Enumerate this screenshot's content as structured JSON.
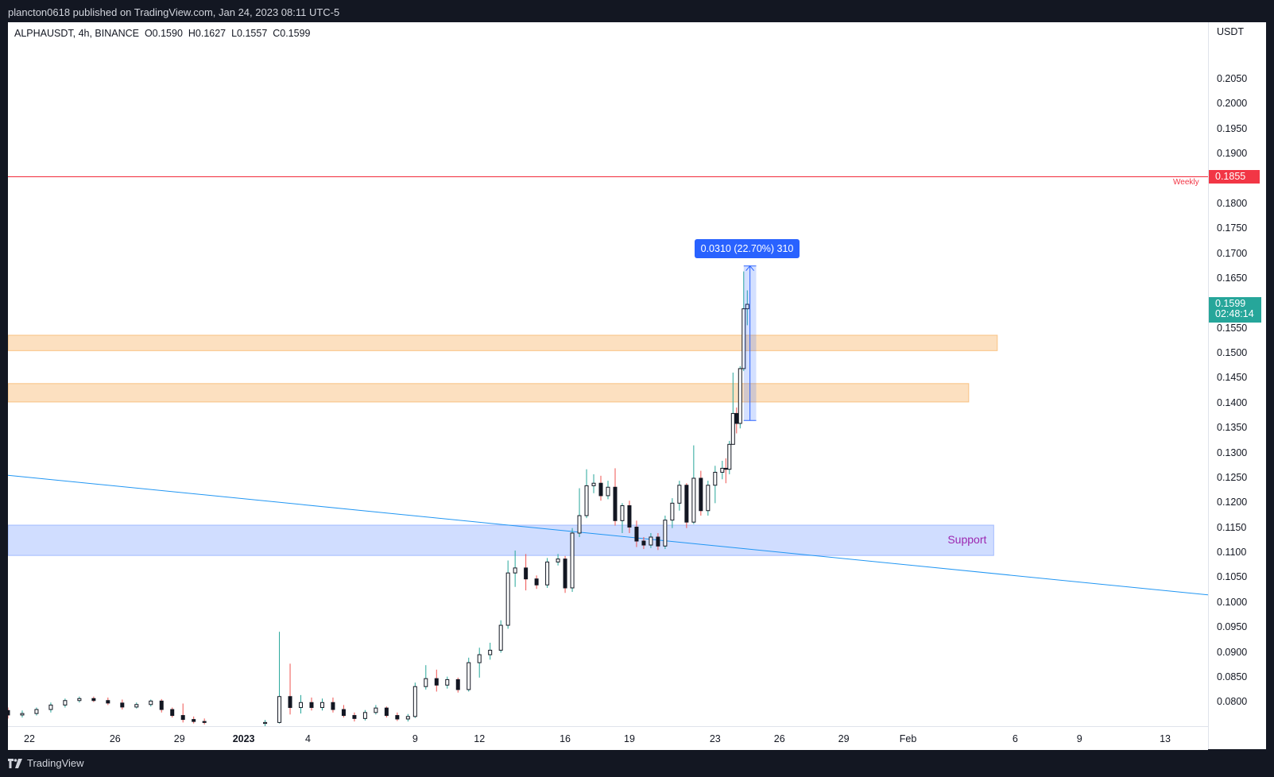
{
  "publisher_line": "plancton0618 published on TradingView.com, Jan 24, 2023 08:11 UTC-5",
  "legend": {
    "symbol": "ALPHAUSDT, 4h, BINANCE",
    "open": "O0.1590",
    "high": "H0.1627",
    "low": "L0.1557",
    "close": "C0.1599"
  },
  "y_axis": {
    "unit": "USDT",
    "ticks": [
      "0.2050",
      "0.2000",
      "0.1950",
      "0.1900",
      "0.1800",
      "0.1750",
      "0.1700",
      "0.1650",
      "0.1550",
      "0.1500",
      "0.1450",
      "0.1400",
      "0.1350",
      "0.1300",
      "0.1250",
      "0.1200",
      "0.1150",
      "0.1100",
      "0.1050",
      "0.1000",
      "0.0950",
      "0.0900",
      "0.0850",
      "0.0800"
    ]
  },
  "x_axis": {
    "ticks": [
      {
        "label": "22",
        "bold": false
      },
      {
        "label": "26",
        "bold": false
      },
      {
        "label": "29",
        "bold": false
      },
      {
        "label": "2023",
        "bold": true
      },
      {
        "label": "4",
        "bold": false
      },
      {
        "label": "9",
        "bold": false
      },
      {
        "label": "12",
        "bold": false
      },
      {
        "label": "16",
        "bold": false
      },
      {
        "label": "19",
        "bold": false
      },
      {
        "label": "23",
        "bold": false
      },
      {
        "label": "26",
        "bold": false
      },
      {
        "label": "29",
        "bold": false
      },
      {
        "label": "Feb",
        "bold": false
      },
      {
        "label": "6",
        "bold": false
      },
      {
        "label": "9",
        "bold": false
      },
      {
        "label": "13",
        "bold": false
      }
    ]
  },
  "weekly_level": {
    "label": "Weekly",
    "price": "0.1855",
    "color": "#f23645"
  },
  "last_price": {
    "price": "0.1599",
    "countdown": "02:48:14",
    "color": "#26a69a"
  },
  "measure": {
    "label": "0.0310 (22.70%) 310",
    "color": "#2962ff"
  },
  "support_label": "Support",
  "footer_brand": "TradingView",
  "colors": {
    "up": "#26a69a",
    "down": "#ef5350",
    "body_dark": "#131722",
    "zone_orange": "#f7a64b",
    "zone_blue": "#2962ff",
    "trendline": "#2196f3"
  },
  "chart_data": {
    "type": "candlestick",
    "symbol": "ALPHAUSDT",
    "interval": "4h",
    "exchange": "BINANCE",
    "y_scale": "linear",
    "ylim": [
      0.0755,
      0.215
    ],
    "x_range": [
      "2022-12-21",
      "2023-02-15"
    ],
    "trendline": {
      "from": {
        "x": "2022-12-21",
        "y": 0.1256
      },
      "to": {
        "x": "2023-02-15",
        "y": 0.1016
      }
    },
    "zones": [
      {
        "name": "resistance-upper",
        "y": [
          0.1506,
          0.1537
        ]
      },
      {
        "name": "resistance-lower",
        "y": [
          0.1403,
          0.144
        ]
      },
      {
        "name": "support",
        "y": [
          0.1095,
          0.1156
        ]
      }
    ],
    "horizontal_lines": [
      {
        "name": "weekly",
        "y": 0.1855
      }
    ],
    "measure": {
      "x": [
        "2023-01-24",
        "2023-01-25"
      ],
      "y": [
        0.1366,
        0.1676
      ]
    },
    "ohlc": [
      {
        "t": "2022-12-21T00:00",
        "o": 0.0784,
        "h": 0.079,
        "l": 0.0768,
        "c": 0.0775
      },
      {
        "t": "2022-12-21T16:00",
        "o": 0.0775,
        "h": 0.0784,
        "l": 0.077,
        "c": 0.0778
      },
      {
        "t": "2022-12-22T08:00",
        "o": 0.0778,
        "h": 0.079,
        "l": 0.0774,
        "c": 0.0786
      },
      {
        "t": "2022-12-23T00:00",
        "o": 0.0786,
        "h": 0.08,
        "l": 0.078,
        "c": 0.0795
      },
      {
        "t": "2022-12-23T16:00",
        "o": 0.0795,
        "h": 0.0808,
        "l": 0.079,
        "c": 0.0804
      },
      {
        "t": "2022-12-24T08:00",
        "o": 0.0804,
        "h": 0.0812,
        "l": 0.08,
        "c": 0.0808
      },
      {
        "t": "2022-12-25T00:00",
        "o": 0.0808,
        "h": 0.0812,
        "l": 0.0801,
        "c": 0.0804
      },
      {
        "t": "2022-12-25T16:00",
        "o": 0.0804,
        "h": 0.081,
        "l": 0.0795,
        "c": 0.0799
      },
      {
        "t": "2022-12-26T08:00",
        "o": 0.0799,
        "h": 0.0806,
        "l": 0.0786,
        "c": 0.0791
      },
      {
        "t": "2022-12-27T00:00",
        "o": 0.0791,
        "h": 0.08,
        "l": 0.0788,
        "c": 0.0796
      },
      {
        "t": "2022-12-27T16:00",
        "o": 0.0796,
        "h": 0.0806,
        "l": 0.0792,
        "c": 0.0803
      },
      {
        "t": "2022-12-28T04:00",
        "o": 0.0803,
        "h": 0.0807,
        "l": 0.078,
        "c": 0.0786
      },
      {
        "t": "2022-12-28T16:00",
        "o": 0.0786,
        "h": 0.079,
        "l": 0.077,
        "c": 0.0774
      },
      {
        "t": "2022-12-29T04:00",
        "o": 0.0774,
        "h": 0.0798,
        "l": 0.076,
        "c": 0.0766
      },
      {
        "t": "2022-12-29T16:00",
        "o": 0.0766,
        "h": 0.0772,
        "l": 0.0758,
        "c": 0.0762
      },
      {
        "t": "2022-12-30T04:00",
        "o": 0.0762,
        "h": 0.0768,
        "l": 0.0756,
        "c": 0.076
      },
      {
        "t": "2023-01-02T00:00",
        "o": 0.0758,
        "h": 0.0765,
        "l": 0.0752,
        "c": 0.076
      },
      {
        "t": "2023-01-02T16:00",
        "o": 0.076,
        "h": 0.0942,
        "l": 0.0758,
        "c": 0.0812
      },
      {
        "t": "2023-01-03T04:00",
        "o": 0.0812,
        "h": 0.0878,
        "l": 0.0776,
        "c": 0.079
      },
      {
        "t": "2023-01-03T16:00",
        "o": 0.079,
        "h": 0.0815,
        "l": 0.0778,
        "c": 0.08
      },
      {
        "t": "2023-01-04T04:00",
        "o": 0.08,
        "h": 0.081,
        "l": 0.0784,
        "c": 0.079
      },
      {
        "t": "2023-01-04T16:00",
        "o": 0.079,
        "h": 0.0808,
        "l": 0.0784,
        "c": 0.08
      },
      {
        "t": "2023-01-05T04:00",
        "o": 0.08,
        "h": 0.081,
        "l": 0.078,
        "c": 0.0786
      },
      {
        "t": "2023-01-05T16:00",
        "o": 0.0786,
        "h": 0.0795,
        "l": 0.077,
        "c": 0.0774
      },
      {
        "t": "2023-01-06T04:00",
        "o": 0.0774,
        "h": 0.078,
        "l": 0.0762,
        "c": 0.0768
      },
      {
        "t": "2023-01-06T16:00",
        "o": 0.0768,
        "h": 0.0785,
        "l": 0.0764,
        "c": 0.078
      },
      {
        "t": "2023-01-07T04:00",
        "o": 0.078,
        "h": 0.0795,
        "l": 0.0776,
        "c": 0.0789
      },
      {
        "t": "2023-01-07T16:00",
        "o": 0.0789,
        "h": 0.0792,
        "l": 0.077,
        "c": 0.0774
      },
      {
        "t": "2023-01-08T04:00",
        "o": 0.0774,
        "h": 0.078,
        "l": 0.0763,
        "c": 0.0767
      },
      {
        "t": "2023-01-08T16:00",
        "o": 0.0767,
        "h": 0.0777,
        "l": 0.0762,
        "c": 0.0772
      },
      {
        "t": "2023-01-09T00:00",
        "o": 0.0772,
        "h": 0.084,
        "l": 0.0769,
        "c": 0.0832
      },
      {
        "t": "2023-01-09T12:00",
        "o": 0.0832,
        "h": 0.0875,
        "l": 0.0826,
        "c": 0.0848
      },
      {
        "t": "2023-01-10T00:00",
        "o": 0.0848,
        "h": 0.0866,
        "l": 0.0822,
        "c": 0.0835
      },
      {
        "t": "2023-01-10T12:00",
        "o": 0.0835,
        "h": 0.0852,
        "l": 0.0828,
        "c": 0.0846
      },
      {
        "t": "2023-01-11T00:00",
        "o": 0.0846,
        "h": 0.085,
        "l": 0.082,
        "c": 0.0826
      },
      {
        "t": "2023-01-11T12:00",
        "o": 0.0826,
        "h": 0.089,
        "l": 0.0822,
        "c": 0.088
      },
      {
        "t": "2023-01-12T00:00",
        "o": 0.088,
        "h": 0.091,
        "l": 0.085,
        "c": 0.0896
      },
      {
        "t": "2023-01-12T12:00",
        "o": 0.0896,
        "h": 0.092,
        "l": 0.0886,
        "c": 0.0905
      },
      {
        "t": "2023-01-13T00:00",
        "o": 0.0905,
        "h": 0.0965,
        "l": 0.09,
        "c": 0.0955
      },
      {
        "t": "2023-01-13T08:00",
        "o": 0.0955,
        "h": 0.1085,
        "l": 0.0948,
        "c": 0.106
      },
      {
        "t": "2023-01-13T16:00",
        "o": 0.106,
        "h": 0.1105,
        "l": 0.1032,
        "c": 0.107
      },
      {
        "t": "2023-01-14T04:00",
        "o": 0.107,
        "h": 0.1098,
        "l": 0.1025,
        "c": 0.1048
      },
      {
        "t": "2023-01-14T16:00",
        "o": 0.1048,
        "h": 0.1055,
        "l": 0.1028,
        "c": 0.1036
      },
      {
        "t": "2023-01-15T04:00",
        "o": 0.1036,
        "h": 0.109,
        "l": 0.103,
        "c": 0.1082
      },
      {
        "t": "2023-01-15T16:00",
        "o": 0.1082,
        "h": 0.1098,
        "l": 0.1075,
        "c": 0.1088
      },
      {
        "t": "2023-01-16T00:00",
        "o": 0.1088,
        "h": 0.1094,
        "l": 0.102,
        "c": 0.103
      },
      {
        "t": "2023-01-16T08:00",
        "o": 0.103,
        "h": 0.115,
        "l": 0.1022,
        "c": 0.114
      },
      {
        "t": "2023-01-16T16:00",
        "o": 0.114,
        "h": 0.123,
        "l": 0.1132,
        "c": 0.1175
      },
      {
        "t": "2023-01-17T00:00",
        "o": 0.1175,
        "h": 0.1268,
        "l": 0.117,
        "c": 0.1235
      },
      {
        "t": "2023-01-17T08:00",
        "o": 0.1235,
        "h": 0.1258,
        "l": 0.122,
        "c": 0.124
      },
      {
        "t": "2023-01-17T16:00",
        "o": 0.124,
        "h": 0.1255,
        "l": 0.1205,
        "c": 0.1215
      },
      {
        "t": "2023-01-18T00:00",
        "o": 0.1215,
        "h": 0.1245,
        "l": 0.1208,
        "c": 0.1232
      },
      {
        "t": "2023-01-18T08:00",
        "o": 0.1232,
        "h": 0.127,
        "l": 0.1155,
        "c": 0.1165
      },
      {
        "t": "2023-01-18T16:00",
        "o": 0.1165,
        "h": 0.12,
        "l": 0.114,
        "c": 0.1195
      },
      {
        "t": "2023-01-19T00:00",
        "o": 0.1195,
        "h": 0.1205,
        "l": 0.114,
        "c": 0.1152
      },
      {
        "t": "2023-01-19T08:00",
        "o": 0.1152,
        "h": 0.1165,
        "l": 0.1112,
        "c": 0.1124
      },
      {
        "t": "2023-01-19T16:00",
        "o": 0.1124,
        "h": 0.1132,
        "l": 0.1108,
        "c": 0.1116
      },
      {
        "t": "2023-01-20T00:00",
        "o": 0.1116,
        "h": 0.114,
        "l": 0.111,
        "c": 0.1132
      },
      {
        "t": "2023-01-20T08:00",
        "o": 0.1132,
        "h": 0.114,
        "l": 0.1106,
        "c": 0.1114
      },
      {
        "t": "2023-01-20T16:00",
        "o": 0.1114,
        "h": 0.1175,
        "l": 0.1108,
        "c": 0.1166
      },
      {
        "t": "2023-01-21T00:00",
        "o": 0.1166,
        "h": 0.121,
        "l": 0.115,
        "c": 0.12
      },
      {
        "t": "2023-01-21T08:00",
        "o": 0.12,
        "h": 0.1245,
        "l": 0.1185,
        "c": 0.1236
      },
      {
        "t": "2023-01-21T16:00",
        "o": 0.1236,
        "h": 0.124,
        "l": 0.115,
        "c": 0.1162
      },
      {
        "t": "2023-01-22T00:00",
        "o": 0.1162,
        "h": 0.1316,
        "l": 0.1158,
        "c": 0.125
      },
      {
        "t": "2023-01-22T08:00",
        "o": 0.125,
        "h": 0.1265,
        "l": 0.1175,
        "c": 0.1185
      },
      {
        "t": "2023-01-22T16:00",
        "o": 0.1185,
        "h": 0.1245,
        "l": 0.1175,
        "c": 0.1236
      },
      {
        "t": "2023-01-23T00:00",
        "o": 0.1236,
        "h": 0.1275,
        "l": 0.12,
        "c": 0.1262
      },
      {
        "t": "2023-01-23T08:00",
        "o": 0.1262,
        "h": 0.1285,
        "l": 0.1248,
        "c": 0.127
      },
      {
        "t": "2023-01-23T12:00",
        "o": 0.127,
        "h": 0.129,
        "l": 0.124,
        "c": 0.1268
      },
      {
        "t": "2023-01-23T16:00",
        "o": 0.1268,
        "h": 0.1325,
        "l": 0.1258,
        "c": 0.1318
      },
      {
        "t": "2023-01-23T20:00",
        "o": 0.1318,
        "h": 0.1462,
        "l": 0.133,
        "c": 0.138
      },
      {
        "t": "2023-01-24T00:00",
        "o": 0.138,
        "h": 0.1392,
        "l": 0.134,
        "c": 0.136
      },
      {
        "t": "2023-01-24T04:00",
        "o": 0.136,
        "h": 0.1475,
        "l": 0.135,
        "c": 0.147
      },
      {
        "t": "2023-01-24T08:00",
        "o": 0.147,
        "h": 0.1665,
        "l": 0.1465,
        "c": 0.159
      },
      {
        "t": "2023-01-24T12:00",
        "o": 0.159,
        "h": 0.1627,
        "l": 0.1557,
        "c": 0.1599
      }
    ]
  }
}
